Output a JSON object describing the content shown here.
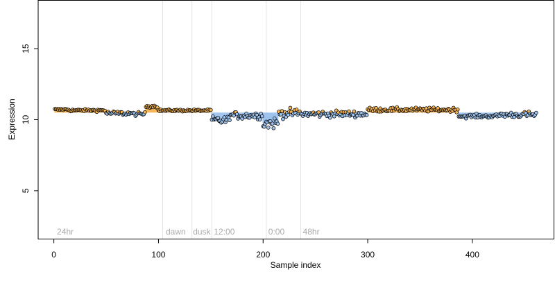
{
  "chart_data": {
    "type": "scatter",
    "title": "",
    "xlabel": "Sample index",
    "ylabel": "Expression",
    "xlim": [
      -15,
      478
    ],
    "ylim": [
      1.6,
      18.4
    ],
    "x_ticks": [
      0,
      100,
      200,
      300,
      400
    ],
    "x_tick_labels": [
      "0",
      "100",
      "200",
      "300",
      "400"
    ],
    "y_ticks": [
      5,
      10,
      15
    ],
    "y_tick_labels": [
      "5",
      "10",
      "15"
    ],
    "grid": false,
    "baseline": 10.5,
    "colors": {
      "point_fill_up": "#f5b453",
      "point_fill_down": "#9dc3ee",
      "point_stroke": "#000000",
      "bar_up": "#f5b453",
      "bar_down": "#9dc3ee",
      "vline": "#e2e2e2",
      "annotation": "#aaaaaa"
    },
    "vertical_lines": [
      104,
      132,
      151,
      203,
      236
    ],
    "annotations": [
      {
        "text": "24hr",
        "x": 3
      },
      {
        "text": "dawn",
        "x": 107
      },
      {
        "text": "dusk",
        "x": 133
      },
      {
        "text": "12:00",
        "x": 153
      },
      {
        "text": "0:00",
        "x": 205
      },
      {
        "text": "48hr",
        "x": 238
      }
    ],
    "n_points": 461,
    "segments": [
      {
        "from": 1,
        "to": 15,
        "level": 10.72,
        "noise": 0.07
      },
      {
        "from": 15,
        "to": 50,
        "level": 10.66,
        "noise": 0.08
      },
      {
        "from": 50,
        "to": 75,
        "level": 10.45,
        "noise": 0.15
      },
      {
        "from": 75,
        "to": 88,
        "level": 10.4,
        "noise": 0.12
      },
      {
        "from": 88,
        "to": 100,
        "level": 10.95,
        "noise": 0.1
      },
      {
        "from": 100,
        "to": 151,
        "level": 10.65,
        "noise": 0.07
      },
      {
        "from": 151,
        "to": 168,
        "level": 9.95,
        "noise": 0.3
      },
      {
        "from": 168,
        "to": 200,
        "level": 10.3,
        "noise": 0.25
      },
      {
        "from": 200,
        "to": 215,
        "level": 9.75,
        "noise": 0.38
      },
      {
        "from": 215,
        "to": 236,
        "level": 10.45,
        "noise": 0.3
      },
      {
        "from": 236,
        "to": 300,
        "level": 10.4,
        "noise": 0.22
      },
      {
        "from": 300,
        "to": 387,
        "level": 10.7,
        "noise": 0.14
      },
      {
        "from": 387,
        "to": 425,
        "level": 10.25,
        "noise": 0.13
      },
      {
        "from": 425,
        "to": 462,
        "level": 10.35,
        "noise": 0.2
      }
    ]
  }
}
